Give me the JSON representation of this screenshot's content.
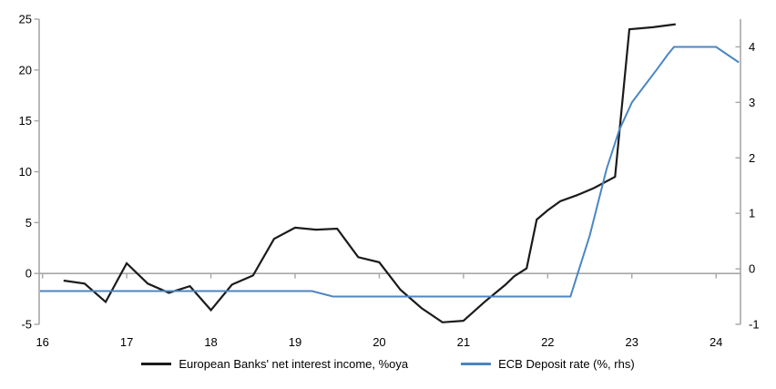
{
  "chart_data": {
    "type": "line",
    "title": "",
    "x_axis": {
      "range": [
        15.96,
        24.29
      ],
      "ticks": [
        "16",
        "17",
        "18",
        "19",
        "20",
        "21",
        "22",
        "23",
        "24"
      ],
      "tick_values": [
        16,
        17,
        18,
        19,
        20,
        21,
        22,
        23,
        24
      ],
      "gridlines": false
    },
    "left_axis": {
      "range": [
        -5,
        25
      ],
      "ticks": [
        "25",
        "20",
        "15",
        "10",
        "5",
        "0",
        "-5"
      ],
      "tick_values": [
        25,
        20,
        15,
        10,
        5,
        0,
        -5
      ]
    },
    "right_axis": {
      "range": [
        -1,
        4.5
      ],
      "ticks": [
        "4",
        "3",
        "2",
        "1",
        "0",
        "-1"
      ],
      "tick_values": [
        4,
        3,
        2,
        1,
        0,
        -1
      ]
    },
    "zero_line_value": 0,
    "colors": {
      "axis": "#a6a6a6",
      "zero_line": "#a6a6a6",
      "text": "#000000",
      "series_black": "#1b1b1b",
      "series_blue": "#4b86c2"
    },
    "legend_position": "bottom",
    "series": [
      {
        "name": "European Banks' net interest income, %oya",
        "axis": "left",
        "color": "#1b1b1b",
        "width": 2.2,
        "points": [
          [
            16.25,
            -0.7
          ],
          [
            16.5,
            -1.0
          ],
          [
            16.75,
            -2.8
          ],
          [
            17.0,
            1.0
          ],
          [
            17.25,
            -1.0
          ],
          [
            17.5,
            -1.9
          ],
          [
            17.75,
            -1.25
          ],
          [
            18.0,
            -3.6
          ],
          [
            18.25,
            -1.1
          ],
          [
            18.5,
            -0.2
          ],
          [
            18.75,
            3.4
          ],
          [
            19.0,
            4.5
          ],
          [
            19.25,
            4.3
          ],
          [
            19.5,
            4.4
          ],
          [
            19.75,
            1.6
          ],
          [
            20.0,
            1.1
          ],
          [
            20.25,
            -1.6
          ],
          [
            20.5,
            -3.4
          ],
          [
            20.75,
            -4.8
          ],
          [
            21.0,
            -4.65
          ],
          [
            21.25,
            -2.8
          ],
          [
            21.5,
            -1.1
          ],
          [
            21.6,
            -0.3
          ],
          [
            21.75,
            0.5
          ],
          [
            21.87,
            5.3
          ],
          [
            22.0,
            6.2
          ],
          [
            22.15,
            7.1
          ],
          [
            22.35,
            7.7
          ],
          [
            22.55,
            8.4
          ],
          [
            22.8,
            9.5
          ],
          [
            22.97,
            24.0
          ],
          [
            23.25,
            24.2
          ],
          [
            23.52,
            24.5
          ]
        ]
      },
      {
        "name": "ECB Deposit rate (%, rhs)",
        "axis": "right",
        "color": "#4b86c2",
        "width": 2,
        "points": [
          [
            15.97,
            -0.4
          ],
          [
            19.2,
            -0.4
          ],
          [
            19.45,
            -0.5
          ],
          [
            22.27,
            -0.5
          ],
          [
            22.5,
            0.6
          ],
          [
            22.7,
            1.8
          ],
          [
            22.85,
            2.5
          ],
          [
            23.0,
            3.0
          ],
          [
            23.15,
            3.3
          ],
          [
            23.3,
            3.6
          ],
          [
            23.42,
            3.85
          ],
          [
            23.5,
            4.0
          ],
          [
            24.0,
            4.0
          ],
          [
            24.27,
            3.72
          ]
        ]
      }
    ]
  }
}
